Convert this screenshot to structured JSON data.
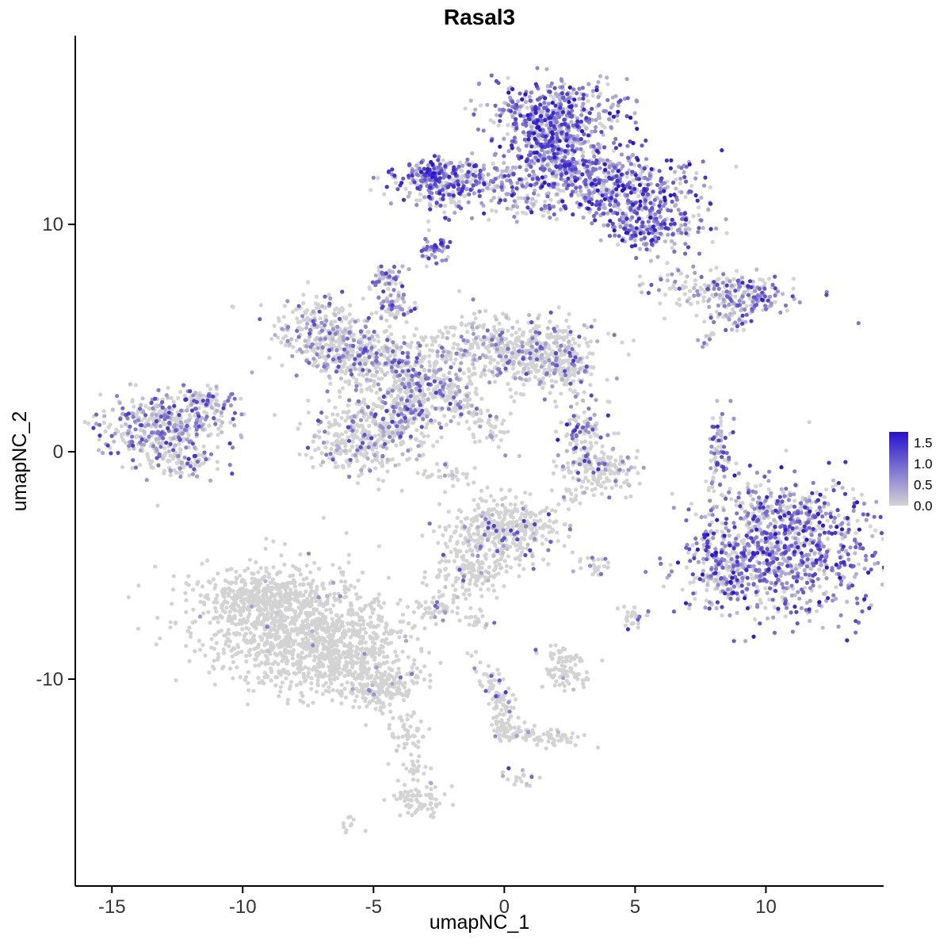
{
  "chart_data": {
    "type": "scatter",
    "title": "Rasal3",
    "xlabel": "umapNC_1",
    "ylabel": "umapNC_2",
    "xlim": [
      -16.4,
      14.5
    ],
    "ylim": [
      -19.1,
      18.3
    ],
    "x_ticks": [
      -15,
      -10,
      -5,
      0,
      5,
      10
    ],
    "y_ticks": [
      -10,
      0,
      10
    ],
    "grid": false,
    "colors": {
      "low": "#d3d3d3",
      "high": "#2711cf",
      "axis": "#000000",
      "tick_text": "#333333"
    },
    "legend": {
      "position": "right",
      "labels": [
        "1.5",
        "1.0",
        "0.5",
        "0.0"
      ],
      "values": [
        1.5,
        1.0,
        0.5,
        0.0
      ],
      "vmax": 1.75
    },
    "clusters": [
      {
        "id": "top-blob-upper",
        "cx": 2.0,
        "cy": 15.0,
        "sx": 1.35,
        "sy": 0.7,
        "n": 380,
        "frac": 0.8,
        "tmax": 1.0
      },
      {
        "id": "top-blob-mid",
        "cx": 1.7,
        "cy": 13.6,
        "sx": 0.95,
        "sy": 0.7,
        "n": 260,
        "frac": 0.8,
        "tmax": 1.0
      },
      {
        "id": "top-blob-apex",
        "cx": 2.2,
        "cy": 12.5,
        "sx": 0.6,
        "sy": 0.5,
        "n": 140,
        "frac": 0.75,
        "tmax": 1.0
      },
      {
        "id": "top-left-arm",
        "cx": -1.2,
        "cy": 11.9,
        "sx": 1.6,
        "sy": 0.45,
        "n": 260,
        "frac": 0.7,
        "tmax": 0.95
      },
      {
        "id": "top-left-arm-end",
        "cx": -2.8,
        "cy": 12.2,
        "sx": 0.45,
        "sy": 0.4,
        "n": 90,
        "frac": 0.95,
        "tmax": 1.0
      },
      {
        "id": "top-left-arm-under",
        "cx": -2.2,
        "cy": 11.1,
        "sx": 0.6,
        "sy": 0.4,
        "n": 55,
        "frac": 0.6,
        "tmax": 0.9
      },
      {
        "id": "top-right-wing",
        "cx": 4.6,
        "cy": 11.5,
        "sx": 1.5,
        "sy": 0.8,
        "n": 380,
        "frac": 0.75,
        "tmax": 1.0
      },
      {
        "id": "top-right-lower",
        "cx": 5.6,
        "cy": 9.9,
        "sx": 0.9,
        "sy": 0.55,
        "n": 200,
        "frac": 0.8,
        "tmax": 1.0
      },
      {
        "id": "top-connector",
        "cx": 3.6,
        "cy": 12.3,
        "sx": 0.55,
        "sy": 0.5,
        "n": 90,
        "frac": 0.7,
        "tmax": 1.0
      },
      {
        "id": "top-below-scatter",
        "cx": 1.2,
        "cy": 11.0,
        "sx": 0.8,
        "sy": 0.5,
        "n": 60,
        "frac": 0.6,
        "tmax": 0.9
      },
      {
        "id": "small-dense-purple",
        "cx": -2.7,
        "cy": 8.9,
        "sx": 0.28,
        "sy": 0.35,
        "n": 45,
        "frac": 0.9,
        "tmax": 1.0
      },
      {
        "id": "small-mid-blob",
        "cx": -4.5,
        "cy": 7.6,
        "sx": 0.3,
        "sy": 0.4,
        "n": 55,
        "frac": 0.55,
        "tmax": 0.85
      },
      {
        "id": "right-horizontal",
        "cx": 8.3,
        "cy": 7.0,
        "sx": 1.4,
        "sy": 0.42,
        "n": 170,
        "frac": 0.45,
        "tmax": 0.8,
        "rot": -8
      },
      {
        "id": "right-horizontal-end",
        "cx": 9.5,
        "cy": 7.0,
        "sx": 0.5,
        "sy": 0.35,
        "n": 60,
        "frac": 0.9,
        "tmax": 1.0
      },
      {
        "id": "right-horizontal-sub",
        "cx": 8.7,
        "cy": 5.9,
        "sx": 0.5,
        "sy": 0.3,
        "n": 40,
        "frac": 0.5,
        "tmax": 0.8
      },
      {
        "id": "right-specks",
        "cx": 7.7,
        "cy": 4.8,
        "sx": 0.25,
        "sy": 0.2,
        "n": 10,
        "frac": 0.3,
        "tmax": 0.5
      },
      {
        "id": "center-left-lobe",
        "cx": -7.0,
        "cy": 5.3,
        "sx": 0.85,
        "sy": 0.8,
        "n": 260,
        "frac": 0.33,
        "tmax": 0.75
      },
      {
        "id": "center-left-mid",
        "cx": -5.6,
        "cy": 4.3,
        "sx": 0.8,
        "sy": 0.7,
        "n": 220,
        "frac": 0.3,
        "tmax": 0.7
      },
      {
        "id": "center-core",
        "cx": -3.6,
        "cy": 3.2,
        "sx": 1.0,
        "sy": 0.95,
        "n": 320,
        "frac": 0.35,
        "tmax": 0.8
      },
      {
        "id": "center-right-lobe",
        "cx": 0.3,
        "cy": 4.4,
        "sx": 1.6,
        "sy": 0.85,
        "n": 500,
        "frac": 0.22,
        "tmax": 0.7
      },
      {
        "id": "center-right-tip",
        "cx": 2.1,
        "cy": 3.9,
        "sx": 0.7,
        "sy": 0.65,
        "n": 160,
        "frac": 0.35,
        "tmax": 0.85
      },
      {
        "id": "center-lower-blob",
        "cx": -5.3,
        "cy": 0.6,
        "sx": 1.05,
        "sy": 0.85,
        "n": 380,
        "frac": 0.28,
        "tmax": 0.8
      },
      {
        "id": "center-bridge",
        "cx": -3.6,
        "cy": 1.8,
        "sx": 0.6,
        "sy": 0.65,
        "n": 140,
        "frac": 0.3,
        "tmax": 0.8
      },
      {
        "id": "center-streak",
        "cx": -1.5,
        "cy": 2.0,
        "sx": 1.1,
        "sy": 0.3,
        "n": 110,
        "frac": 0.2,
        "tmax": 0.7,
        "rot": -48
      },
      {
        "id": "center-top-nub",
        "cx": -4.2,
        "cy": 6.4,
        "sx": 0.35,
        "sy": 0.3,
        "n": 60,
        "frac": 0.6,
        "tmax": 0.9
      },
      {
        "id": "center-under-specks",
        "cx": -2.0,
        "cy": -1.0,
        "sx": 0.5,
        "sy": 0.25,
        "n": 25,
        "frac": 0.2,
        "tmax": 0.6
      },
      {
        "id": "left-cluster",
        "cx": -13.0,
        "cy": 1.0,
        "sx": 1.2,
        "sy": 0.8,
        "n": 420,
        "frac": 0.5,
        "tmax": 0.85
      },
      {
        "id": "left-cluster-arm",
        "cx": -11.3,
        "cy": 2.2,
        "sx": 0.5,
        "sy": 0.4,
        "n": 70,
        "frac": 0.4,
        "tmax": 0.8
      },
      {
        "id": "left-cluster-tail",
        "cx": -12.4,
        "cy": -0.5,
        "sx": 0.6,
        "sy": 0.3,
        "n": 60,
        "frac": 0.3,
        "tmax": 0.7
      },
      {
        "id": "mid-small-upper",
        "cx": 3.1,
        "cy": 1.0,
        "sx": 0.45,
        "sy": 0.6,
        "n": 90,
        "frac": 0.4,
        "tmax": 0.95
      },
      {
        "id": "mid-small-lower",
        "cx": 3.6,
        "cy": -0.8,
        "sx": 0.8,
        "sy": 0.5,
        "n": 170,
        "frac": 0.18,
        "tmax": 0.9
      },
      {
        "id": "mid-small-specks",
        "cx": 2.5,
        "cy": -1.9,
        "sx": 0.3,
        "sy": 0.2,
        "n": 15,
        "frac": 0.1,
        "tmax": 0.6
      },
      {
        "id": "right-thin-vertical",
        "cx": 8.2,
        "cy": 0.4,
        "sx": 0.22,
        "sy": 0.85,
        "n": 65,
        "frac": 0.5,
        "tmax": 0.95
      },
      {
        "id": "right-thin-specks",
        "cx": 8.1,
        "cy": -1.5,
        "sx": 0.15,
        "sy": 0.3,
        "n": 10,
        "frac": 0.2,
        "tmax": 0.6
      },
      {
        "id": "bottom-right-main",
        "cx": 10.8,
        "cy": -4.4,
        "sx": 1.9,
        "sy": 1.5,
        "n": 850,
        "frac": 0.75,
        "tmax": 1.0
      },
      {
        "id": "bottom-right-west",
        "cx": 8.4,
        "cy": -5.0,
        "sx": 0.6,
        "sy": 0.8,
        "n": 140,
        "frac": 0.6,
        "tmax": 0.9
      },
      {
        "id": "bottom-right-topfringe",
        "cx": 10.5,
        "cy": -2.6,
        "sx": 1.3,
        "sy": 0.5,
        "n": 150,
        "frac": 0.5,
        "tmax": 0.9
      },
      {
        "id": "center-bottom",
        "cx": 0.0,
        "cy": -3.4,
        "sx": 1.1,
        "sy": 0.75,
        "n": 380,
        "frac": 0.12,
        "tmax": 0.85
      },
      {
        "id": "center-bottom-tail",
        "cx": -1.3,
        "cy": -5.3,
        "sx": 0.7,
        "sy": 0.6,
        "n": 140,
        "frac": 0.1,
        "tmax": 0.7
      },
      {
        "id": "satellite-a",
        "cx": 3.4,
        "cy": -5.0,
        "sx": 0.3,
        "sy": 0.25,
        "n": 25,
        "frac": 0.15,
        "tmax": 0.7
      },
      {
        "id": "satellite-b",
        "cx": -2.6,
        "cy": -6.9,
        "sx": 0.35,
        "sy": 0.3,
        "n": 45,
        "frac": 0.1,
        "tmax": 0.9
      },
      {
        "id": "satellite-c",
        "cx": -1.0,
        "cy": -7.4,
        "sx": 0.25,
        "sy": 0.2,
        "n": 18,
        "frac": 0.1,
        "tmax": 0.6
      },
      {
        "id": "satellite-d",
        "cx": 5.0,
        "cy": -7.3,
        "sx": 0.3,
        "sy": 0.25,
        "n": 28,
        "frac": 0.15,
        "tmax": 0.9
      },
      {
        "id": "bottomleft-core",
        "cx": -8.2,
        "cy": -7.6,
        "sx": 1.9,
        "sy": 1.3,
        "n": 900,
        "frac": 0.015,
        "tmax": 0.5
      },
      {
        "id": "bottomleft-lower",
        "cx": -6.2,
        "cy": -9.0,
        "sx": 1.3,
        "sy": 0.9,
        "n": 450,
        "frac": 0.015,
        "tmax": 0.5
      },
      {
        "id": "bottomleft-top",
        "cx": -9.3,
        "cy": -6.3,
        "sx": 1.0,
        "sy": 0.5,
        "n": 250,
        "frac": 0.01,
        "tmax": 0.4
      },
      {
        "id": "bottomleft-tail",
        "cx": -4.6,
        "cy": -10.3,
        "sx": 0.7,
        "sy": 0.5,
        "n": 160,
        "frac": 0.03,
        "tmax": 0.6
      },
      {
        "id": "bottomleft-trail",
        "cx": -3.7,
        "cy": -12.3,
        "sx": 0.35,
        "sy": 0.6,
        "n": 45,
        "frac": 0.02,
        "tmax": 0.5
      },
      {
        "id": "bottomleft-trail2",
        "cx": -3.4,
        "cy": -13.9,
        "sx": 0.25,
        "sy": 0.35,
        "n": 20,
        "frac": 0.02,
        "tmax": 0.5
      },
      {
        "id": "bottom-mid-blob",
        "cx": 2.3,
        "cy": -9.6,
        "sx": 0.5,
        "sy": 0.45,
        "n": 90,
        "frac": 0.06,
        "tmax": 0.7
      },
      {
        "id": "bottom-diagonal",
        "cx": -0.3,
        "cy": -10.6,
        "sx": 0.9,
        "sy": 0.28,
        "n": 85,
        "frac": 0.06,
        "tmax": 0.95,
        "rot": -65
      },
      {
        "id": "bottom-elbow",
        "cx": 0.1,
        "cy": -12.1,
        "sx": 0.3,
        "sy": 0.3,
        "n": 30,
        "frac": 0.05,
        "tmax": 0.7
      },
      {
        "id": "bottom-arm",
        "cx": 1.4,
        "cy": -12.5,
        "sx": 0.9,
        "sy": 0.25,
        "n": 70,
        "frac": 0.03,
        "tmax": 0.6,
        "rot": -10
      },
      {
        "id": "bottom-dot-cluster",
        "cx": 0.6,
        "cy": -14.5,
        "sx": 0.3,
        "sy": 0.25,
        "n": 18,
        "frac": 0.25,
        "tmax": 0.9
      },
      {
        "id": "bottom-blob",
        "cx": -3.3,
        "cy": -15.3,
        "sx": 0.5,
        "sy": 0.4,
        "n": 70,
        "frac": 0.04,
        "tmax": 0.9
      },
      {
        "id": "bottom-specks",
        "cx": -5.9,
        "cy": -16.4,
        "sx": 0.4,
        "sy": 0.18,
        "n": 10,
        "frac": 0.0,
        "tmax": 0.0
      },
      {
        "id": "stray-left",
        "cx": -10.4,
        "cy": 6.3,
        "sx": 0.12,
        "sy": 0.1,
        "n": 2,
        "frac": 0.0,
        "tmax": 0.0
      }
    ]
  }
}
